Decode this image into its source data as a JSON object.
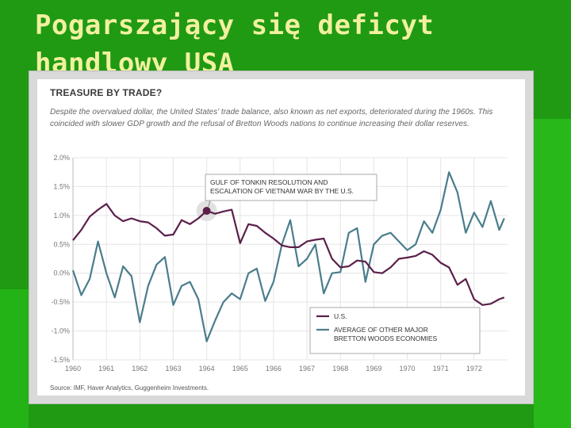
{
  "slide": {
    "title": "Pogarszający się deficyt handlowy USA",
    "bg_color": "#1f9a12",
    "title_color": "#f2f0a0"
  },
  "chart_data": {
    "type": "line",
    "title": "TREASURE BY TRADE?",
    "subtitle": "Despite the overvalued dollar, the United States' trade balance, also known as net exports, deteriorated during the 1960s. This coincided with slower GDP growth and the refusal of Bretton Woods nations to continue increasing their dollar reserves.",
    "source": "Source: IMF, Haver Analytics, Guggenheim Investments.",
    "ylim": [
      -1.5,
      2.0
    ],
    "xlim": [
      1960,
      1973
    ],
    "y_ticks": [
      "2.0%",
      "1.5%",
      "1.0%",
      "0.5%",
      "0.0%",
      "-0.5%",
      "-1.0%",
      "-1.5%"
    ],
    "y_tick_values": [
      2.0,
      1.5,
      1.0,
      0.5,
      0.0,
      -0.5,
      -1.0,
      -1.5
    ],
    "x_ticks": [
      "1960",
      "1961",
      "1962",
      "1963",
      "1964",
      "1965",
      "1966",
      "1967",
      "1968",
      "1969",
      "1970",
      "1971",
      "1972"
    ],
    "grid": true,
    "legend_position": "bottom-center",
    "annotation": {
      "lines": [
        "GULF OF TONKIN RESOLUTION AND",
        "ESCALATION OF VIETNAM WAR BY THE U.S."
      ],
      "point": [
        1964.0,
        1.08
      ]
    },
    "series": [
      {
        "name": "U.S.",
        "color": "#5b1f4a",
        "x": [
          1960.0,
          1960.25,
          1960.5,
          1960.75,
          1961.0,
          1961.25,
          1961.5,
          1961.75,
          1962.0,
          1962.25,
          1962.5,
          1962.75,
          1963.0,
          1963.25,
          1963.5,
          1963.75,
          1964.0,
          1964.25,
          1964.5,
          1964.75,
          1965.0,
          1965.25,
          1965.5,
          1965.75,
          1966.0,
          1966.25,
          1966.5,
          1966.75,
          1967.0,
          1967.25,
          1967.5,
          1967.75,
          1968.0,
          1968.25,
          1968.5,
          1968.75,
          1969.0,
          1969.25,
          1969.5,
          1969.75,
          1970.0,
          1970.25,
          1970.5,
          1970.75,
          1971.0,
          1971.25,
          1971.5,
          1971.75,
          1972.0,
          1972.25,
          1972.5,
          1972.75,
          1972.9
        ],
        "values": [
          0.57,
          0.75,
          0.98,
          1.1,
          1.2,
          1.0,
          0.9,
          0.95,
          0.9,
          0.88,
          0.78,
          0.65,
          0.67,
          0.92,
          0.85,
          0.95,
          1.08,
          1.03,
          1.07,
          1.1,
          0.52,
          0.85,
          0.82,
          0.7,
          0.6,
          0.48,
          0.45,
          0.45,
          0.55,
          0.58,
          0.6,
          0.25,
          0.1,
          0.12,
          0.22,
          0.2,
          0.02,
          0.0,
          0.1,
          0.25,
          0.27,
          0.3,
          0.38,
          0.32,
          0.18,
          0.1,
          -0.2,
          -0.1,
          -0.45,
          -0.55,
          -0.53,
          -0.45,
          -0.42
        ]
      },
      {
        "name": "AVERAGE OF OTHER MAJOR BRETTON WOODS ECONOMIES",
        "color": "#4a7d8c",
        "x": [
          1960.0,
          1960.25,
          1960.5,
          1960.75,
          1961.0,
          1961.25,
          1961.5,
          1961.75,
          1962.0,
          1962.25,
          1962.5,
          1962.75,
          1963.0,
          1963.25,
          1963.5,
          1963.75,
          1964.0,
          1964.25,
          1964.5,
          1964.75,
          1965.0,
          1965.25,
          1965.5,
          1965.75,
          1966.0,
          1966.25,
          1966.5,
          1966.75,
          1967.0,
          1967.25,
          1967.5,
          1967.75,
          1968.0,
          1968.25,
          1968.5,
          1968.75,
          1969.0,
          1969.25,
          1969.5,
          1969.75,
          1970.0,
          1970.25,
          1970.5,
          1970.75,
          1971.0,
          1971.25,
          1971.5,
          1971.75,
          1972.0,
          1972.25,
          1972.5,
          1972.75,
          1972.9
        ],
        "values": [
          0.05,
          -0.38,
          -0.1,
          0.55,
          0.0,
          -0.42,
          0.12,
          -0.05,
          -0.85,
          -0.22,
          0.15,
          0.28,
          -0.55,
          -0.22,
          -0.15,
          -0.45,
          -1.18,
          -0.82,
          -0.5,
          -0.35,
          -0.45,
          0.0,
          0.08,
          -0.48,
          -0.15,
          0.5,
          0.92,
          0.12,
          0.25,
          0.5,
          -0.35,
          0.0,
          0.02,
          0.7,
          0.78,
          -0.15,
          0.5,
          0.65,
          0.7,
          0.55,
          0.4,
          0.5,
          0.9,
          0.7,
          1.1,
          1.75,
          1.4,
          0.7,
          1.05,
          0.8,
          1.25,
          0.75,
          0.95
        ]
      }
    ]
  }
}
